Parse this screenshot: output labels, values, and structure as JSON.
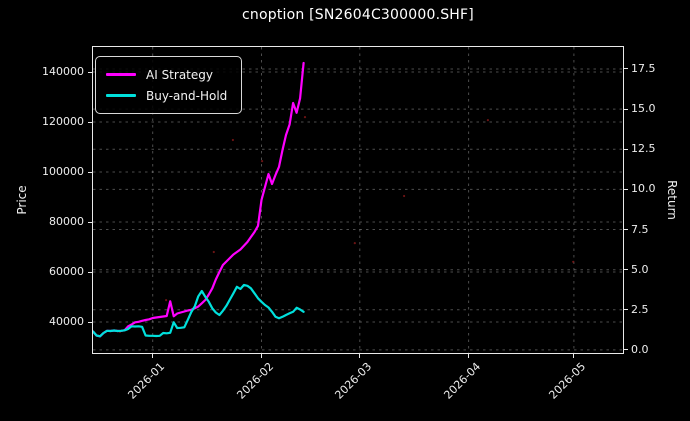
{
  "figure": {
    "title": "cnoption [SN2604C300000.SHF]"
  },
  "chart_data": {
    "type": "line",
    "title": "cnoption [SN2604C300000.SHF]",
    "background": "#000000",
    "text_color": "#ffffff",
    "grid": true,
    "legend_position": "upper-left",
    "x_axis": {
      "tick_labels": [
        "2026-01",
        "2026-02",
        "2026-03",
        "2026-04",
        "2026-05"
      ],
      "tick_day_offsets": [
        17,
        48,
        76,
        107,
        137
      ],
      "start_date": "2025-12-15",
      "end_date": "2026-05-14",
      "total_days": 151
    },
    "y_left": {
      "label": "Price",
      "tick_labels": [
        "140000",
        "120000",
        "100000",
        "80000",
        "60000",
        "40000"
      ],
      "tick_values": [
        140000,
        120000,
        100000,
        80000,
        60000,
        40000
      ],
      "range": [
        27600,
        150000
      ]
    },
    "y_right": {
      "label": "Return",
      "tick_labels": [
        "17.5",
        "15.0",
        "12.5",
        "10.0",
        "7.5",
        "5.0",
        "2.5",
        "0.0"
      ],
      "tick_values": [
        17.5,
        15.0,
        12.5,
        10.0,
        7.5,
        5.0,
        2.5,
        0.0
      ],
      "range": [
        -0.19,
        18.87
      ]
    },
    "series": [
      {
        "name": "AI Strategy",
        "color": "#ff00ff",
        "frequency": "daily",
        "start_date": "2025-12-15",
        "values": [
          36200,
          34600,
          34300,
          35600,
          36500,
          36400,
          36600,
          36400,
          36500,
          36700,
          38300,
          39000,
          39900,
          40100,
          40500,
          40800,
          41100,
          41600,
          41800,
          42000,
          42200,
          42400,
          48300,
          42300,
          43400,
          43800,
          44200,
          44600,
          44900,
          45500,
          46200,
          47500,
          48800,
          51000,
          53500,
          57000,
          60000,
          62800,
          64200,
          65600,
          67000,
          68000,
          69000,
          70500,
          72000,
          74000,
          76000,
          78500,
          88800,
          94000,
          99200,
          95200,
          98800,
          102100,
          108800,
          114800,
          119000,
          127600,
          123700,
          129500,
          143600
        ]
      },
      {
        "name": "Buy-and-Hold",
        "color": "#00e0dc",
        "frequency": "daily",
        "start_date": "2025-12-15",
        "values": [
          36200,
          34600,
          34300,
          35600,
          36500,
          36400,
          36600,
          36400,
          36500,
          36700,
          37200,
          38300,
          38200,
          38300,
          38100,
          34600,
          34500,
          34500,
          34400,
          34500,
          35600,
          35500,
          35700,
          39900,
          37600,
          37700,
          37900,
          40900,
          44000,
          46300,
          50300,
          52400,
          50100,
          48100,
          45500,
          43800,
          42800,
          44500,
          46500,
          49000,
          51500,
          54100,
          53200,
          54800,
          54500,
          53500,
          51500,
          49500,
          48100,
          46800,
          45800,
          44100,
          42100,
          41500,
          42100,
          42800,
          43500,
          44100,
          45700,
          45000,
          44100
        ]
      }
    ],
    "artifact_dots_frac": [
      [
        0.264,
        0.304
      ],
      [
        0.4,
        0.229
      ],
      [
        0.494,
        0.641
      ],
      [
        0.587,
        0.487
      ],
      [
        0.138,
        0.827
      ],
      [
        0.228,
        0.67
      ],
      [
        0.319,
        0.373
      ],
      [
        0.051,
        0.931
      ],
      [
        0.745,
        0.239
      ],
      [
        0.906,
        0.702
      ]
    ]
  }
}
